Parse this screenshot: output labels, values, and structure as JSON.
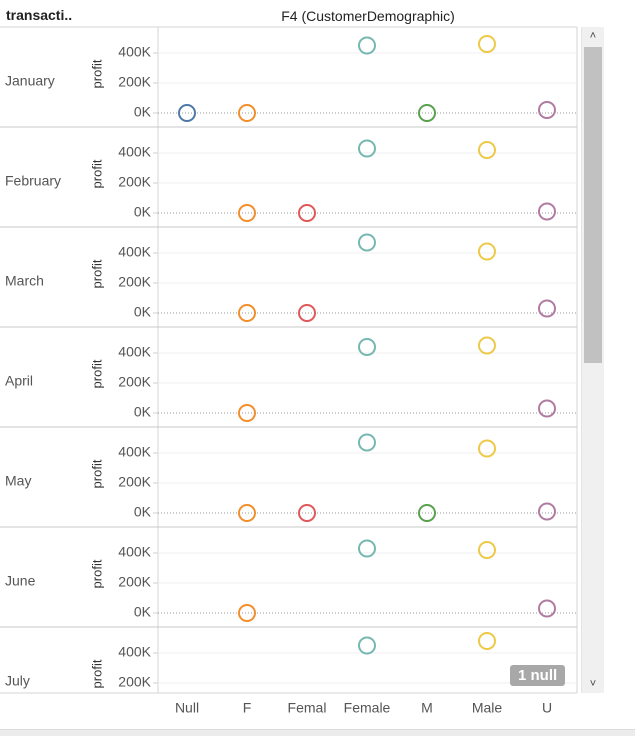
{
  "header": {
    "row_field": "transacti..",
    "column_field": "F4 (CustomerDemographic)"
  },
  "null_badge": "1 null",
  "scrollbar": {
    "up_icon": "chevron-up-icon",
    "down_icon": "chevron-down-icon"
  },
  "colors": {
    "Null": "#4e79a7",
    "F": "#f28e2b",
    "Femal": "#e15759",
    "Female": "#76b7b2",
    "M": "#59a14f",
    "Male": "#edc948",
    "U": "#b07aa1"
  },
  "chart_data": {
    "type": "scatter",
    "x_field": "F4 (CustomerDemographic)",
    "row_field": "transacti..",
    "ylabel": "profit",
    "y_ticks": [
      "0K",
      "200K",
      "400K"
    ],
    "categories": [
      "Null",
      "F",
      "Femal",
      "Female",
      "M",
      "Male",
      "U"
    ],
    "rows": [
      {
        "label": "January",
        "points": [
          {
            "x": "Null",
            "y": 0
          },
          {
            "x": "F",
            "y": 0
          },
          {
            "x": "Female",
            "y": 450000
          },
          {
            "x": "M",
            "y": 0
          },
          {
            "x": "Male",
            "y": 460000
          },
          {
            "x": "U",
            "y": 20000
          }
        ]
      },
      {
        "label": "February",
        "points": [
          {
            "x": "F",
            "y": 0
          },
          {
            "x": "Femal",
            "y": 0
          },
          {
            "x": "Female",
            "y": 430000
          },
          {
            "x": "Male",
            "y": 420000
          },
          {
            "x": "U",
            "y": 10000
          }
        ]
      },
      {
        "label": "March",
        "points": [
          {
            "x": "F",
            "y": 0
          },
          {
            "x": "Femal",
            "y": 0
          },
          {
            "x": "Female",
            "y": 470000
          },
          {
            "x": "Male",
            "y": 410000
          },
          {
            "x": "U",
            "y": 30000
          }
        ]
      },
      {
        "label": "April",
        "points": [
          {
            "x": "F",
            "y": 0
          },
          {
            "x": "Female",
            "y": 440000
          },
          {
            "x": "Male",
            "y": 450000
          },
          {
            "x": "U",
            "y": 30000
          }
        ]
      },
      {
        "label": "May",
        "points": [
          {
            "x": "F",
            "y": 0
          },
          {
            "x": "Femal",
            "y": 0
          },
          {
            "x": "Female",
            "y": 470000
          },
          {
            "x": "M",
            "y": 0
          },
          {
            "x": "Male",
            "y": 430000
          },
          {
            "x": "U",
            "y": 10000
          }
        ]
      },
      {
        "label": "June",
        "points": [
          {
            "x": "F",
            "y": 0
          },
          {
            "x": "Female",
            "y": 430000
          },
          {
            "x": "Male",
            "y": 420000
          },
          {
            "x": "U",
            "y": 30000
          }
        ]
      },
      {
        "label": "July",
        "points": [
          {
            "x": "Female",
            "y": 450000
          },
          {
            "x": "Male",
            "y": 480000
          }
        ]
      }
    ]
  }
}
